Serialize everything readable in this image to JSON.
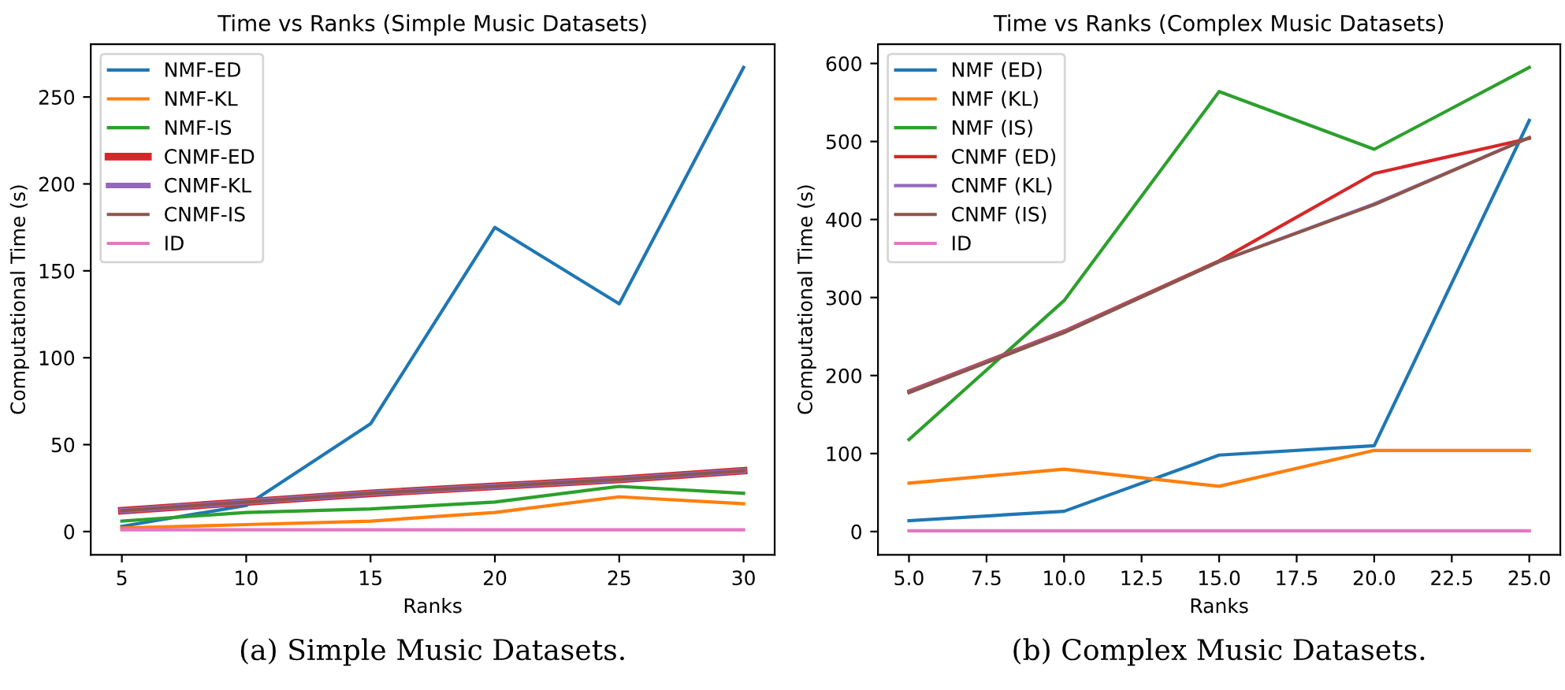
{
  "chart_data": [
    {
      "type": "line",
      "title": "Time vs Ranks (Simple Music Datasets)",
      "xlabel": "Ranks",
      "ylabel": "Computational Time (s)",
      "annotations": [
        "(a) Simple Music Datasets."
      ],
      "x": [
        5,
        10,
        15,
        20,
        25,
        30
      ],
      "xlim": [
        3.75,
        31.25
      ],
      "xticks": [
        5,
        10,
        15,
        20,
        25,
        30
      ],
      "ylim": [
        -13.35,
        280.4
      ],
      "yticks": [
        0,
        50,
        100,
        150,
        200,
        250
      ],
      "legend": "top left",
      "grid": false,
      "series": [
        {
          "name": "NMF-ED",
          "color": "#1f77b4",
          "values": [
            3,
            15,
            62,
            175,
            131,
            267
          ]
        },
        {
          "name": "NMF-KL",
          "color": "#ff7f0e",
          "values": [
            2,
            4,
            6,
            11,
            20,
            16
          ]
        },
        {
          "name": "NMF-IS",
          "color": "#2ca02c",
          "values": [
            6,
            11,
            13,
            17,
            26,
            22
          ]
        },
        {
          "name": "CNMF-ED",
          "color": "#d62728",
          "values": [
            12,
            17,
            22,
            26,
            30,
            35
          ]
        },
        {
          "name": "CNMF-KL",
          "color": "#9467bd",
          "values": [
            12,
            17,
            22,
            26,
            30,
            35
          ]
        },
        {
          "name": "CNMF-IS",
          "color": "#8c564b",
          "values": [
            12,
            17,
            22,
            26,
            30,
            35
          ]
        },
        {
          "name": "ID",
          "color": "#e377c2",
          "values": [
            1,
            1,
            1,
            1,
            1,
            1
          ]
        }
      ]
    },
    {
      "type": "line",
      "title": "Time vs Ranks (Complex Music Datasets)",
      "xlabel": "Ranks",
      "ylabel": "Computational Time (s)",
      "annotations": [
        "(b) Complex Music Datasets."
      ],
      "x": [
        5,
        10,
        15,
        20,
        25
      ],
      "xlim": [
        4,
        26
      ],
      "xticks": [
        {
          "value": 5,
          "label": "5.0"
        },
        {
          "value": 7.5,
          "label": "7.5"
        },
        {
          "value": 10,
          "label": "10.0"
        },
        {
          "value": 12.5,
          "label": "12.5"
        },
        {
          "value": 15,
          "label": "15.0"
        },
        {
          "value": 17.5,
          "label": "17.5"
        },
        {
          "value": 20,
          "label": "20.0"
        },
        {
          "value": 22.5,
          "label": "22.5"
        },
        {
          "value": 25,
          "label": "25.0"
        }
      ],
      "ylim": [
        -29.75,
        624.75
      ],
      "yticks": [
        0,
        100,
        200,
        300,
        400,
        500,
        600
      ],
      "legend": "top left",
      "grid": false,
      "series": [
        {
          "name": "NMF (ED)",
          "color": "#1f77b4",
          "values": [
            14,
            26,
            98,
            110,
            527
          ]
        },
        {
          "name": "NMF (KL)",
          "color": "#ff7f0e",
          "values": [
            62,
            80,
            58,
            104,
            104
          ]
        },
        {
          "name": "NMF (IS)",
          "color": "#2ca02c",
          "values": [
            118,
            296,
            564,
            490,
            595
          ]
        },
        {
          "name": "CNMF (ED)",
          "color": "#d62728",
          "values": [
            180,
            257,
            347,
            459,
            504
          ]
        },
        {
          "name": "CNMF (KL)",
          "color": "#9467bd",
          "values": [
            179,
            256,
            346,
            420,
            505
          ]
        },
        {
          "name": "CNMF (IS)",
          "color": "#8c564b",
          "values": [
            178,
            255,
            346,
            419,
            505
          ]
        },
        {
          "name": "ID",
          "color": "#e377c2",
          "values": [
            1,
            1,
            1,
            1,
            1
          ]
        }
      ]
    }
  ]
}
